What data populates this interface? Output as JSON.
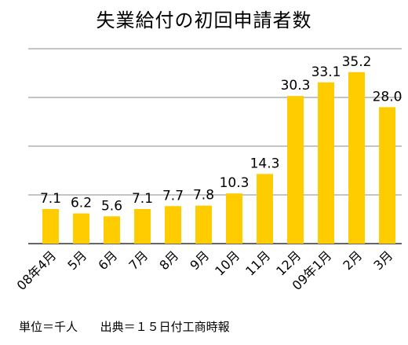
{
  "chart_data": {
    "type": "bar",
    "title": "失業給付の初回申請者数",
    "categories": [
      "08年4月",
      "5月",
      "6月",
      "7月",
      "8月",
      "9月",
      "10月",
      "11月",
      "12月",
      "09年1月",
      "2月",
      "3月"
    ],
    "values": [
      7.1,
      6.2,
      5.6,
      7.1,
      7.7,
      7.8,
      10.3,
      14.3,
      30.3,
      33.1,
      35.2,
      28.0
    ],
    "data_labels": [
      "7.1",
      "6.2",
      "5.6",
      "7.1",
      "7.7",
      "7.8",
      "10.3",
      "14.3",
      "30.3",
      "33.1",
      "35.2",
      "28.0"
    ],
    "ylim": [
      0,
      40
    ],
    "gridlines": [
      0,
      10,
      20,
      30,
      40
    ],
    "grid": true,
    "legend": "none",
    "bar_color": "#FFCC00",
    "grid_color": "#888888"
  },
  "footer": {
    "unit": "単位＝千人",
    "source": "出典＝１５日付工商時報"
  }
}
